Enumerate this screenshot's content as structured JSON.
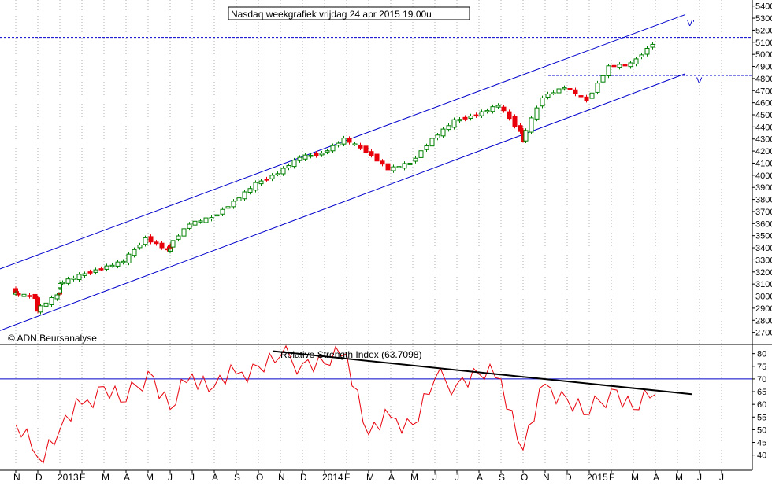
{
  "chart_data": [
    {
      "type": "candlestick",
      "title": "Nasdaq weekgrafiek vrijdag 24 apr 2015 19.00u",
      "watermark": "© ADN Beursanalyse",
      "ylim": [
        2600,
        5450
      ],
      "y_ticks": [
        2700,
        2800,
        2900,
        3000,
        3100,
        3200,
        3300,
        3400,
        3500,
        3600,
        3700,
        3800,
        3900,
        4000,
        4100,
        4200,
        4300,
        4400,
        4500,
        4600,
        4700,
        4800,
        4900,
        5000,
        5100,
        5200,
        5300,
        5400
      ],
      "x_labels": [
        "N",
        "D",
        "2013",
        "F",
        "M",
        "A",
        "M",
        "J",
        "J",
        "A",
        "S",
        "O",
        "N",
        "D",
        "2014",
        "F",
        "M",
        "A",
        "M",
        "J",
        "J",
        "A",
        "S",
        "O",
        "N",
        "D",
        "2015",
        "F",
        "M",
        "A",
        "M",
        "J",
        "J"
      ],
      "colors": {
        "up": "#008000",
        "down": "#e8000b",
        "channel": "#0000cc",
        "grid": "#b0b0b0"
      },
      "channel_labels": {
        "upper": "V'",
        "lower": "V"
      },
      "horizontal_levels": [
        5140,
        4825
      ],
      "upper_channel": {
        "start": [
          "2012-11",
          3290
        ],
        "end": [
          "2015-05",
          5330
        ]
      },
      "lower_channel": {
        "start": [
          "2012-11",
          2780
        ],
        "end": [
          "2015-05",
          4840
        ]
      },
      "weekly_close_approx": [
        [
          "2012-11",
          3050
        ],
        [
          "2012-11",
          3020
        ],
        [
          "2012-12",
          2990
        ],
        [
          "2012-12",
          2880
        ],
        [
          "2013-01",
          3010
        ],
        [
          "2013-01",
          3100
        ],
        [
          "2013-02",
          3170
        ],
        [
          "2013-03",
          3230
        ],
        [
          "2013-04",
          3290
        ],
        [
          "2013-05",
          3480
        ],
        [
          "2013-06",
          3380
        ],
        [
          "2013-06",
          3410
        ],
        [
          "2013-07",
          3600
        ],
        [
          "2013-08",
          3650
        ],
        [
          "2013-09",
          3780
        ],
        [
          "2013-10",
          3930
        ],
        [
          "2013-11",
          4020
        ],
        [
          "2013-12",
          4150
        ],
        [
          "2014-01",
          4180
        ],
        [
          "2014-02",
          4300
        ],
        [
          "2014-03",
          4200
        ],
        [
          "2014-04",
          4050
        ],
        [
          "2014-05",
          4100
        ],
        [
          "2014-06",
          4300
        ],
        [
          "2014-07",
          4450
        ],
        [
          "2014-08",
          4500
        ],
        [
          "2014-09",
          4580
        ],
        [
          "2014-10",
          4360
        ],
        [
          "2014-10",
          4280
        ],
        [
          "2014-11",
          4650
        ],
        [
          "2014-12",
          4730
        ],
        [
          "2015-01",
          4620
        ],
        [
          "2015-02",
          4900
        ],
        [
          "2015-03",
          4920
        ],
        [
          "2015-04",
          5090
        ]
      ]
    },
    {
      "type": "line",
      "title": "Relative Strength Index (63.7098)",
      "ylim": [
        34,
        83
      ],
      "y_ticks": [
        40,
        45,
        50,
        55,
        60,
        65,
        70,
        75,
        80
      ],
      "level": 70,
      "colors": {
        "line": "#e8000b",
        "level": "#0000cc",
        "trendline": "#000000"
      },
      "trendline": {
        "start": [
          "2013-11",
          81
        ],
        "end": [
          "2015-05",
          64
        ]
      },
      "values_approx": [
        [
          "2012-11",
          52
        ],
        [
          "2012-12",
          39
        ],
        [
          "2013-01",
          50
        ],
        [
          "2013-02",
          60
        ],
        [
          "2013-03",
          67
        ],
        [
          "2013-04",
          61
        ],
        [
          "2013-05",
          73
        ],
        [
          "2013-06",
          58
        ],
        [
          "2013-07",
          72
        ],
        [
          "2013-08",
          67
        ],
        [
          "2013-09",
          72
        ],
        [
          "2013-10",
          75
        ],
        [
          "2013-11",
          79
        ],
        [
          "2013-12",
          76
        ],
        [
          "2014-01",
          76
        ],
        [
          "2014-02",
          80
        ],
        [
          "2014-03",
          48
        ],
        [
          "2014-04",
          55
        ],
        [
          "2014-05",
          52
        ],
        [
          "2014-06",
          70
        ],
        [
          "2014-07",
          68
        ],
        [
          "2014-08",
          72
        ],
        [
          "2014-09",
          70
        ],
        [
          "2014-10",
          42
        ],
        [
          "2014-11",
          68
        ],
        [
          "2014-12",
          62
        ],
        [
          "2015-01",
          56
        ],
        [
          "2015-02",
          66
        ],
        [
          "2015-03",
          58
        ],
        [
          "2015-04",
          64
        ]
      ]
    }
  ]
}
